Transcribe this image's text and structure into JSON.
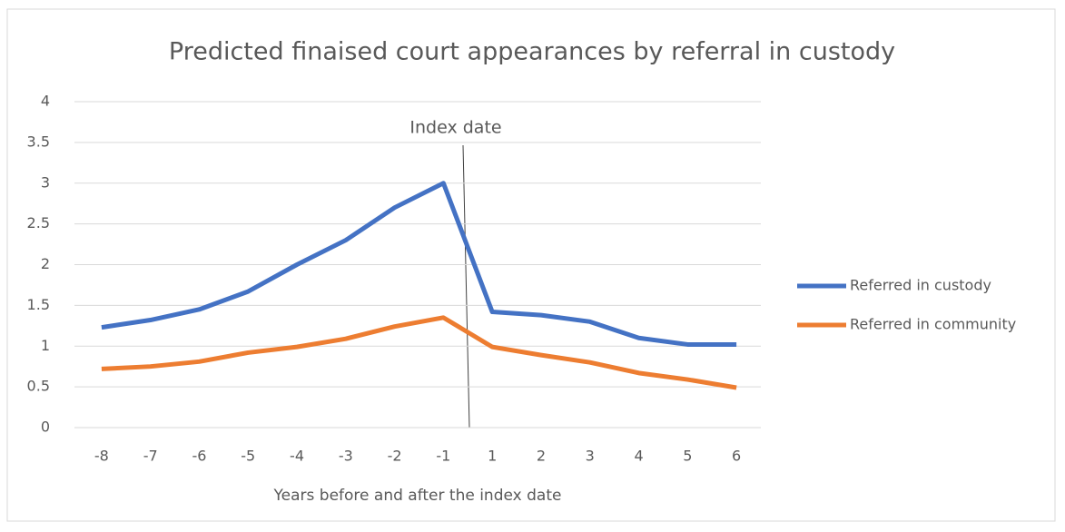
{
  "chart_data": {
    "type": "line",
    "title": "Predicted finaised court appearances by referral in custody",
    "x_label": "Years before and after the index date",
    "annotation": "Index date",
    "categories": [
      "-8",
      "-7",
      "-6",
      "-5",
      "-4",
      "-3",
      "-2",
      "-1",
      "1",
      "2",
      "3",
      "4",
      "5",
      "6"
    ],
    "series": [
      {
        "name": "Referred in custody",
        "color": "#4472c4",
        "values": [
          1.23,
          1.32,
          1.45,
          1.67,
          2.0,
          2.3,
          2.7,
          3.0,
          1.42,
          1.38,
          1.3,
          1.1,
          1.02,
          1.02
        ]
      },
      {
        "name": "Referred in community",
        "color": "#ed7d31",
        "values": [
          0.72,
          0.75,
          0.81,
          0.92,
          0.99,
          1.09,
          1.24,
          1.35,
          0.99,
          0.89,
          0.8,
          0.67,
          0.59,
          0.49
        ]
      }
    ],
    "ylim": [
      0,
      4
    ],
    "yticks": [
      0,
      0.5,
      1,
      1.5,
      2,
      2.5,
      3,
      3.5,
      4
    ],
    "grid": true,
    "legend": "right"
  }
}
